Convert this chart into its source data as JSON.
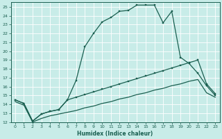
{
  "xlabel": "Humidex (Indice chaleur)",
  "bg_color": "#c8ece8",
  "line_color": "#1a5f50",
  "xlim": [
    -0.5,
    23.5
  ],
  "ylim": [
    12,
    25.5
  ],
  "xticks": [
    0,
    1,
    2,
    3,
    4,
    5,
    6,
    7,
    8,
    9,
    10,
    11,
    12,
    13,
    14,
    15,
    16,
    17,
    18,
    19,
    20,
    21,
    22,
    23
  ],
  "yticks": [
    12,
    13,
    14,
    15,
    16,
    17,
    18,
    19,
    20,
    21,
    22,
    23,
    24,
    25
  ],
  "line1_x": [
    0,
    1,
    2,
    3,
    4,
    5,
    6,
    7,
    8,
    9,
    10,
    11,
    12,
    13,
    14,
    15,
    16,
    17,
    18,
    19,
    20,
    21,
    22,
    23
  ],
  "line1_y": [
    14.5,
    14.1,
    12.1,
    12.9,
    13.2,
    13.4,
    14.5,
    16.7,
    20.5,
    22.0,
    23.3,
    23.8,
    24.5,
    24.6,
    25.2,
    25.2,
    25.2,
    23.2,
    24.5,
    19.3,
    18.6,
    17.5,
    16.1,
    15.0
  ],
  "line2_x": [
    0,
    1,
    2,
    3,
    4,
    5,
    6,
    7,
    8,
    9,
    10,
    11,
    12,
    13,
    14,
    15,
    16,
    17,
    18,
    19,
    20,
    21,
    22,
    23
  ],
  "line2_y": [
    14.5,
    14.1,
    12.1,
    12.9,
    13.2,
    13.4,
    14.5,
    14.8,
    15.1,
    15.4,
    15.7,
    16.0,
    16.3,
    16.6,
    16.9,
    17.2,
    17.5,
    17.8,
    18.1,
    18.4,
    18.7,
    19.0,
    16.3,
    15.2
  ],
  "line3_x": [
    0,
    1,
    2,
    3,
    4,
    5,
    6,
    7,
    8,
    9,
    10,
    11,
    12,
    13,
    14,
    15,
    16,
    17,
    18,
    19,
    20,
    21,
    22,
    23
  ],
  "line3_y": [
    14.3,
    13.9,
    12.0,
    12.4,
    12.7,
    12.9,
    13.1,
    13.3,
    13.6,
    13.8,
    14.1,
    14.3,
    14.6,
    14.8,
    15.1,
    15.3,
    15.6,
    15.8,
    16.1,
    16.3,
    16.6,
    16.8,
    15.3,
    14.8
  ]
}
